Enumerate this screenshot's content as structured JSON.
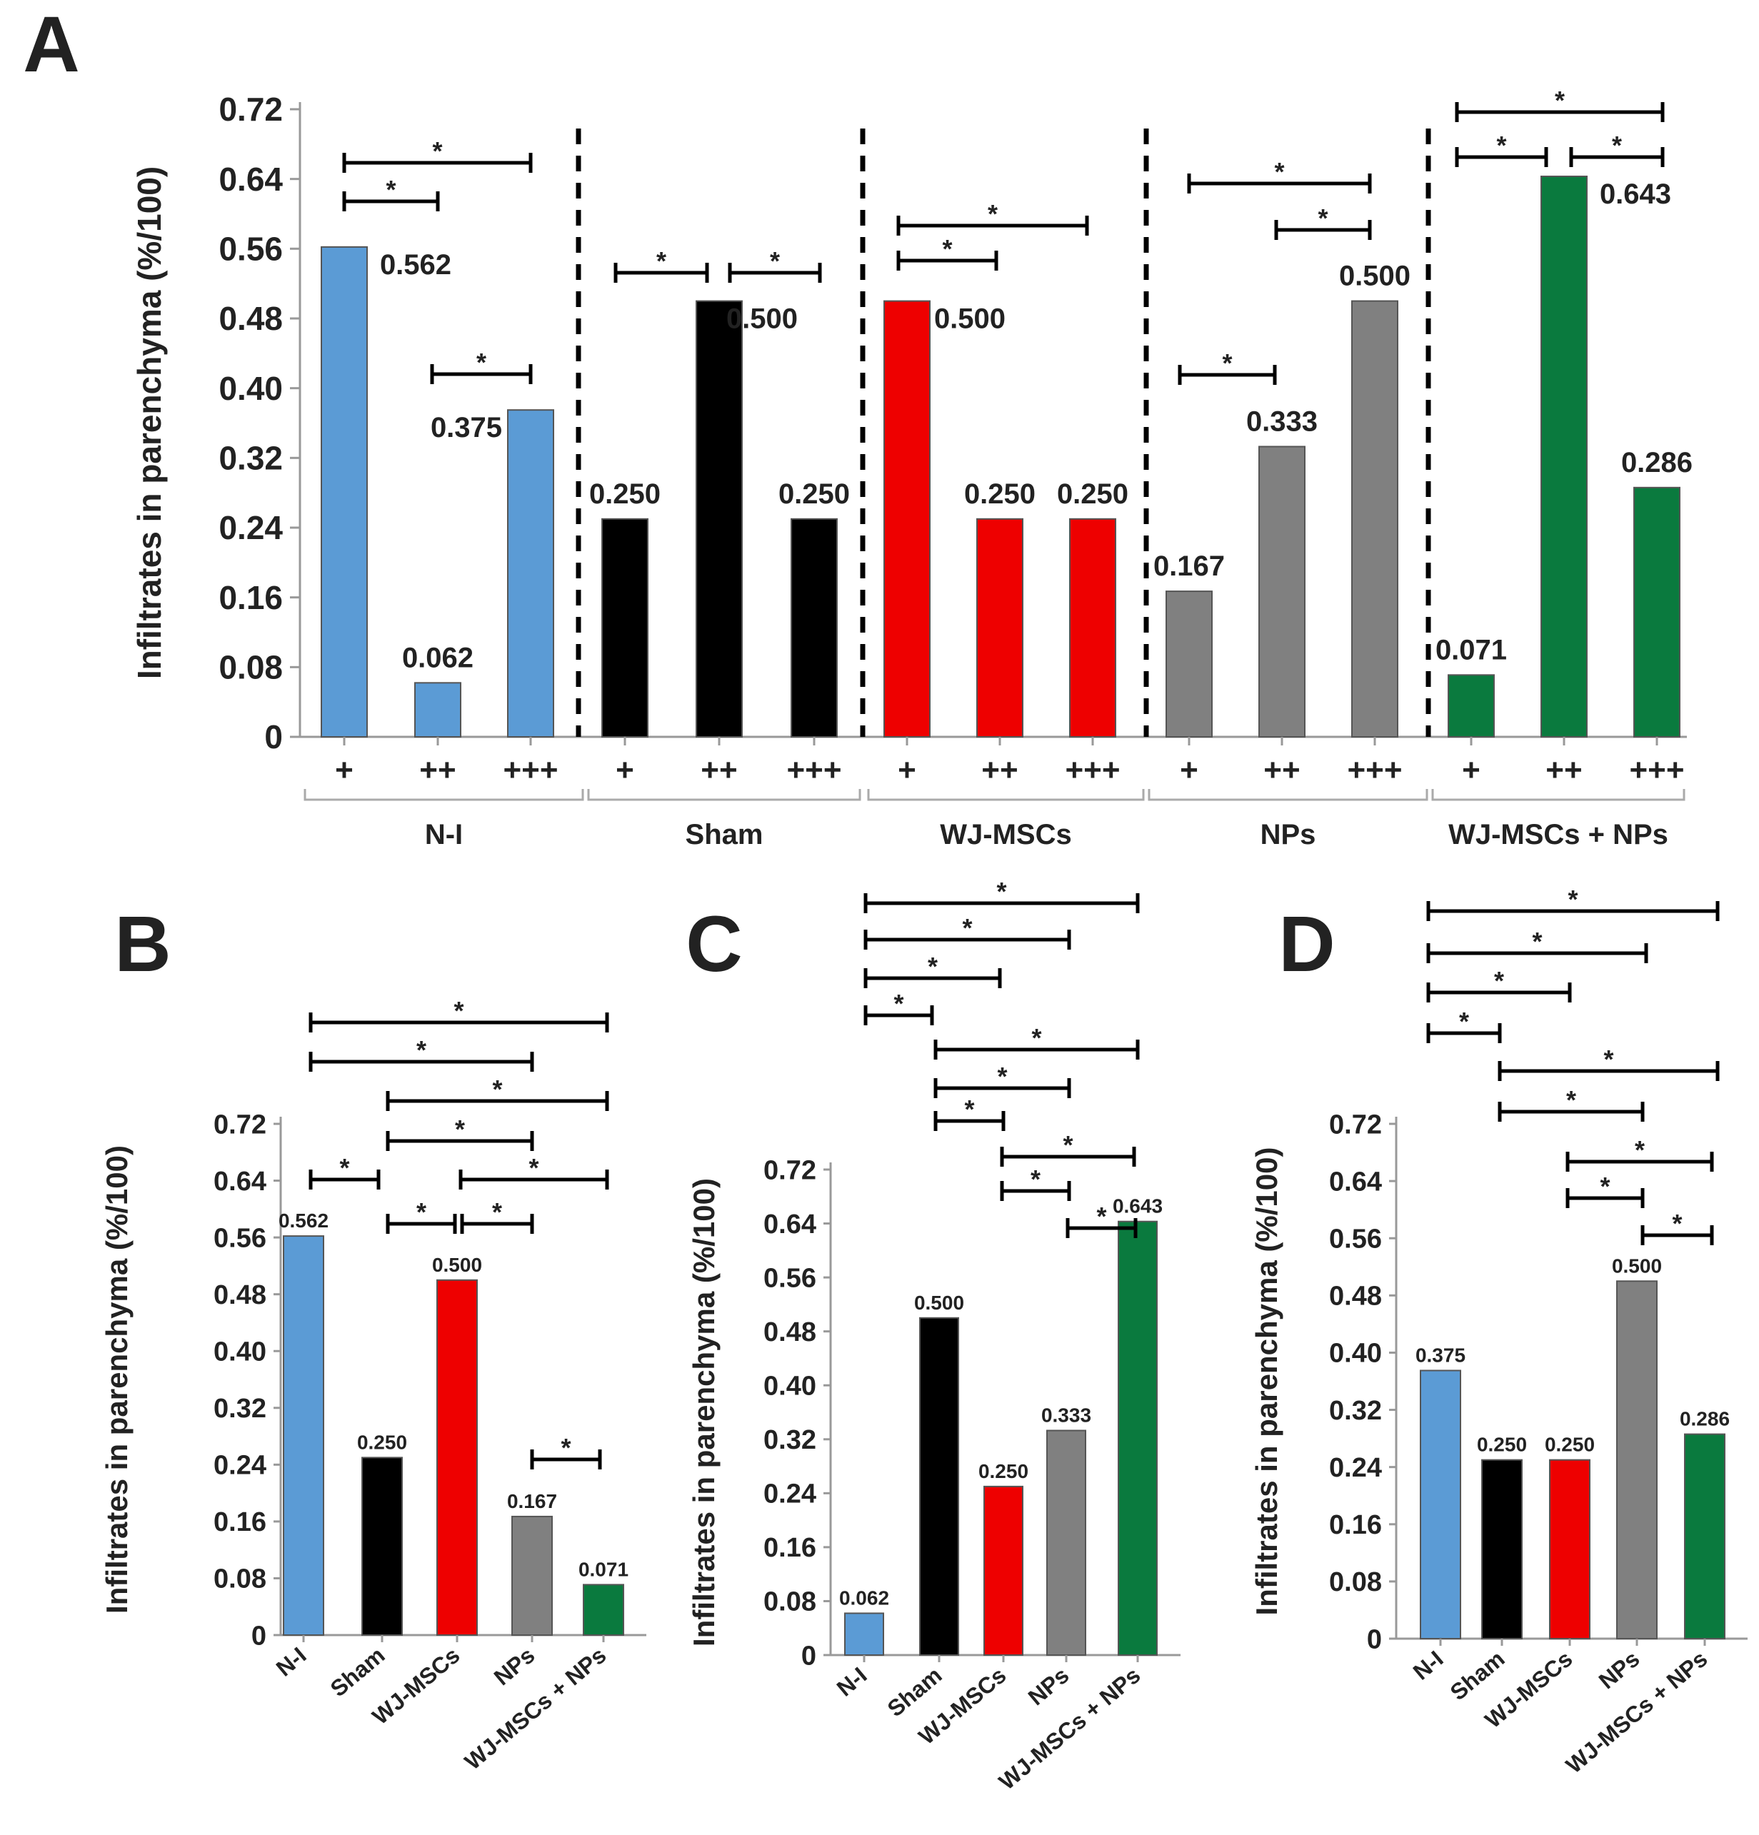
{
  "colors": {
    "N-I": "#5b9bd5",
    "Sham": "#000000",
    "WJ-MSCs": "#ee0000",
    "NPs": "#808080",
    "WJ-MSCs + NPs": "#0a7a3e",
    "axis": "#999999",
    "text": "#222222"
  },
  "chart_data": [
    {
      "panel": "A",
      "type": "bar",
      "ylabel": "Infiltrates in parenchyma (%/100)",
      "ylim": [
        0,
        0.72
      ],
      "yticks": [
        "0",
        "0.08",
        "0.16",
        "0.24",
        "0.32",
        "0.40",
        "0.48",
        "0.56",
        "0.64",
        "0.72"
      ],
      "groups": [
        {
          "name": "N-I",
          "categories": [
            "+",
            "++",
            "+++"
          ],
          "values": [
            0.562,
            0.062,
            0.375
          ],
          "labels": [
            "0.562",
            "0.062",
            "0.375"
          ],
          "significance": [
            {
              "from": 0,
              "to": 1,
              "label": "*"
            },
            {
              "from": 0,
              "to": 2,
              "label": "*"
            },
            {
              "from": 1,
              "to": 2,
              "label": "*"
            }
          ]
        },
        {
          "name": "Sham",
          "categories": [
            "+",
            "++",
            "+++"
          ],
          "values": [
            0.25,
            0.5,
            0.25
          ],
          "labels": [
            "0.250",
            "0.500",
            "0.250"
          ],
          "significance": [
            {
              "from": 0,
              "to": 1,
              "label": "*"
            },
            {
              "from": 1,
              "to": 2,
              "label": "*"
            }
          ]
        },
        {
          "name": "WJ-MSCs",
          "categories": [
            "+",
            "++",
            "+++"
          ],
          "values": [
            0.5,
            0.25,
            0.25
          ],
          "labels": [
            "0.500",
            "0.250",
            "0.250"
          ],
          "significance": [
            {
              "from": 0,
              "to": 1,
              "label": "*"
            },
            {
              "from": 0,
              "to": 2,
              "label": "*"
            }
          ]
        },
        {
          "name": "NPs",
          "categories": [
            "+",
            "++",
            "+++"
          ],
          "values": [
            0.167,
            0.333,
            0.5
          ],
          "labels": [
            "0.167",
            "0.333",
            "0.500"
          ],
          "significance": [
            {
              "from": 0,
              "to": 1,
              "label": "*"
            },
            {
              "from": 1,
              "to": 2,
              "label": "*"
            },
            {
              "from": 0,
              "to": 2,
              "label": "*"
            }
          ]
        },
        {
          "name": "WJ-MSCs + NPs",
          "categories": [
            "+",
            "++",
            "+++"
          ],
          "values": [
            0.071,
            0.643,
            0.286
          ],
          "labels": [
            "0.071",
            "0.643",
            "0.286"
          ],
          "significance": [
            {
              "from": 0,
              "to": 1,
              "label": "*"
            },
            {
              "from": 1,
              "to": 2,
              "label": "*"
            },
            {
              "from": 0,
              "to": 2,
              "label": "*"
            }
          ]
        }
      ]
    },
    {
      "panel": "B",
      "type": "bar",
      "ylabel": "Infiltrates in parenchyma (%/100)",
      "ylim": [
        0,
        0.72
      ],
      "yticks": [
        "0",
        "0.08",
        "0.16",
        "0.24",
        "0.32",
        "0.40",
        "0.48",
        "0.56",
        "0.64",
        "0.72"
      ],
      "categories": [
        "N-I",
        "Sham",
        "WJ-MSCs",
        "NPs",
        "WJ-MSCs + NPs"
      ],
      "values": [
        0.562,
        0.25,
        0.5,
        0.167,
        0.071
      ],
      "labels": [
        "0.562",
        "0.250",
        "0.500",
        "0.167",
        "0.071"
      ],
      "significance": [
        {
          "from": 0,
          "to": 4,
          "label": "*"
        },
        {
          "from": 0,
          "to": 3,
          "label": "*"
        },
        {
          "from": 1,
          "to": 4,
          "label": "*"
        },
        {
          "from": 1,
          "to": 3,
          "label": "*"
        },
        {
          "from": 0,
          "to": 1,
          "label": "*"
        },
        {
          "from": 2,
          "to": 4,
          "label": "*"
        },
        {
          "from": 1,
          "to": 2,
          "label": "*"
        },
        {
          "from": 2,
          "to": 3,
          "label": "*"
        },
        {
          "from": 3,
          "to": 4,
          "label": "*"
        }
      ]
    },
    {
      "panel": "C",
      "type": "bar",
      "ylabel": "Infiltrates in parenchyma (%/100)",
      "ylim": [
        0,
        0.72
      ],
      "yticks": [
        "0",
        "0.08",
        "0.16",
        "0.24",
        "0.32",
        "0.40",
        "0.48",
        "0.56",
        "0.64",
        "0.72"
      ],
      "categories": [
        "N-I",
        "Sham",
        "WJ-MSCs",
        "NPs",
        "WJ-MSCs + NPs"
      ],
      "values": [
        0.062,
        0.5,
        0.25,
        0.333,
        0.643
      ],
      "labels": [
        "0.062",
        "0.500",
        "0.250",
        "0.333",
        "0.643"
      ],
      "significance": [
        {
          "from": 0,
          "to": 4,
          "label": "*"
        },
        {
          "from": 0,
          "to": 3,
          "label": "*"
        },
        {
          "from": 0,
          "to": 2,
          "label": "*"
        },
        {
          "from": 0,
          "to": 1,
          "label": "*"
        },
        {
          "from": 1,
          "to": 4,
          "label": "*"
        },
        {
          "from": 1,
          "to": 3,
          "label": "*"
        },
        {
          "from": 1,
          "to": 2,
          "label": "*"
        },
        {
          "from": 2,
          "to": 4,
          "label": "*"
        },
        {
          "from": 2,
          "to": 3,
          "label": "*"
        },
        {
          "from": 3,
          "to": 4,
          "label": "*"
        }
      ]
    },
    {
      "panel": "D",
      "type": "bar",
      "ylabel": "Infiltrates in parenchyma (%/100)",
      "ylim": [
        0,
        0.72
      ],
      "yticks": [
        "0",
        "0.08",
        "0.16",
        "0.24",
        "0.32",
        "0.40",
        "0.48",
        "0.56",
        "0.64",
        "0.72"
      ],
      "categories": [
        "N-I",
        "Sham",
        "WJ-MSCs",
        "NPs",
        "WJ-MSCs + NPs"
      ],
      "values": [
        0.375,
        0.25,
        0.25,
        0.5,
        0.286
      ],
      "labels": [
        "0.375",
        "0.250",
        "0.250",
        "0.500",
        "0.286"
      ],
      "significance": [
        {
          "from": 0,
          "to": 4,
          "label": "*"
        },
        {
          "from": 0,
          "to": 3,
          "label": "*"
        },
        {
          "from": 0,
          "to": 2,
          "label": "*"
        },
        {
          "from": 0,
          "to": 1,
          "label": "*"
        },
        {
          "from": 1,
          "to": 4,
          "label": "*"
        },
        {
          "from": 1,
          "to": 3,
          "label": "*"
        },
        {
          "from": 2,
          "to": 4,
          "label": "*"
        },
        {
          "from": 2,
          "to": 3,
          "label": "*"
        },
        {
          "from": 3,
          "to": 4,
          "label": "*"
        }
      ]
    }
  ]
}
